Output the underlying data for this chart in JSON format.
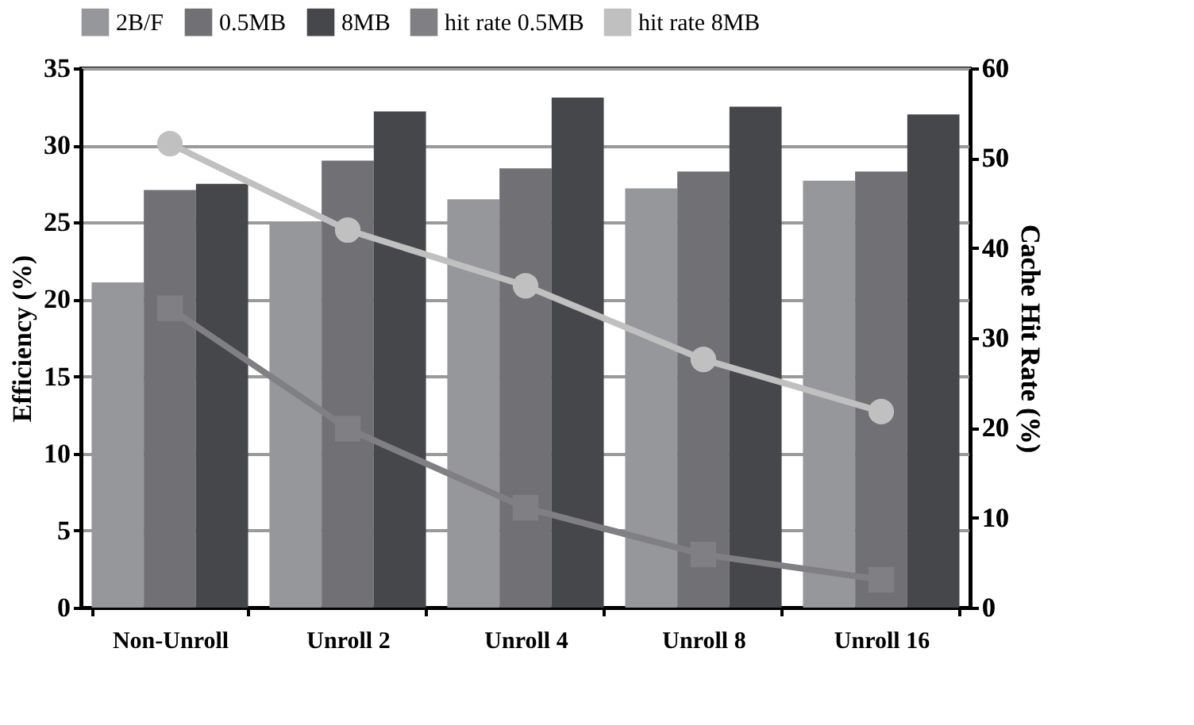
{
  "chart_data": {
    "type": "bar",
    "ylabel": "Efficiency (%)",
    "y2label": "Cache Hit Rate (%)",
    "categories": [
      "Non-Unroll",
      "Unroll 2",
      "Unroll 4",
      "Unroll 8",
      "Unroll 16"
    ],
    "series": [
      {
        "name": "2B/F",
        "type": "bar",
        "color": "#96979b",
        "values": [
          21.1,
          25.0,
          26.5,
          27.2,
          27.7
        ]
      },
      {
        "name": "0.5MB",
        "type": "bar",
        "color": "#717175",
        "values": [
          27.1,
          29.0,
          28.5,
          28.3,
          28.3
        ]
      },
      {
        "name": "8MB",
        "type": "bar",
        "color": "#46474a",
        "values": [
          27.5,
          32.2,
          33.1,
          32.5,
          32.0
        ]
      },
      {
        "name": "hit rate 0.5MB",
        "type": "line",
        "axis": "y2",
        "marker": "square",
        "color": "#808084",
        "values": [
          33.3,
          19.9,
          11.1,
          5.9,
          3.1
        ]
      },
      {
        "name": "hit rate 8MB",
        "type": "line",
        "axis": "y2",
        "marker": "circle",
        "color": "#c0c0c0",
        "values": [
          51.6,
          42.0,
          35.8,
          27.6,
          21.8
        ]
      }
    ],
    "ylim": [
      0,
      35
    ],
    "yticks": [
      0,
      5,
      10,
      15,
      20,
      25,
      30,
      35
    ],
    "y2lim": [
      0,
      60
    ],
    "y2ticks": [
      0,
      10,
      20,
      30,
      40,
      50,
      60
    ],
    "grid": "y",
    "legend": "top"
  }
}
